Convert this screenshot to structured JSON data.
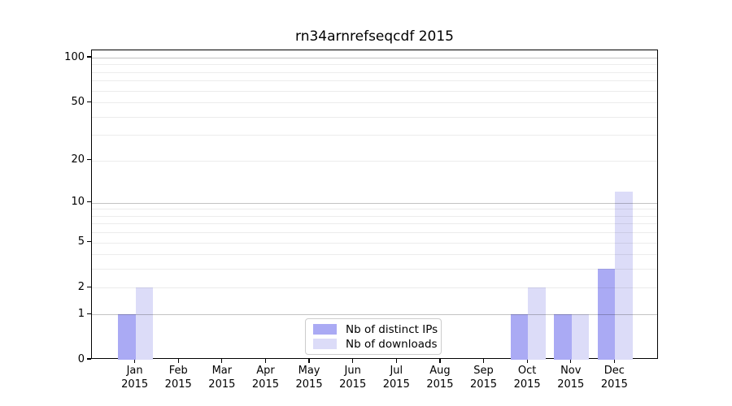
{
  "chart_data": {
    "type": "bar",
    "title": "rn34arnrefseqcdf 2015",
    "categories": [
      "Jan",
      "Feb",
      "Mar",
      "Apr",
      "May",
      "Jun",
      "Jul",
      "Aug",
      "Sep",
      "Oct",
      "Nov",
      "Dec"
    ],
    "year_label": "2015",
    "series": [
      {
        "name": "Nb of distinct IPs",
        "color": "#aaaaf4",
        "values": [
          1,
          0,
          0,
          0,
          0,
          0,
          0,
          0,
          0,
          1,
          1,
          3
        ]
      },
      {
        "name": "Nb of downloads",
        "color": "#dcdcf8",
        "values": [
          2,
          0,
          0,
          0,
          0,
          0,
          0,
          0,
          0,
          2,
          1,
          12
        ]
      }
    ],
    "yaxis": {
      "scale": "log10(1+v)",
      "tick_labels": [
        "0",
        "1",
        "2",
        "5",
        "10",
        "20",
        "50",
        "100"
      ],
      "ticks": [
        0,
        1,
        2,
        5,
        10,
        20,
        50,
        100
      ],
      "decade_gridlines": [
        1,
        10,
        100
      ],
      "sub_gridlines": [
        2,
        5,
        20,
        50
      ],
      "minor_gridlines": [
        3,
        4,
        6,
        7,
        8,
        9,
        30,
        40,
        60,
        70,
        80,
        90
      ],
      "max": 112
    },
    "legend_position": "lower center",
    "grid": true
  }
}
